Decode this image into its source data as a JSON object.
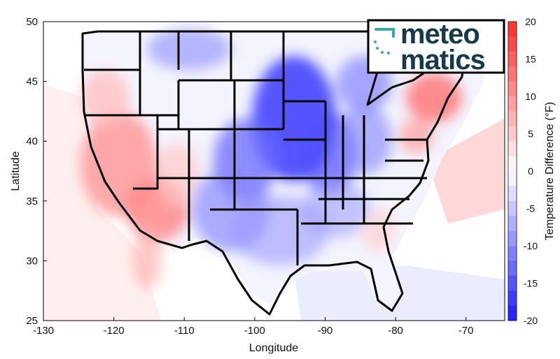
{
  "map": {
    "xlabel": "Longitude",
    "ylabel": "Latitude",
    "x_ticks": [
      "-130",
      "-120",
      "-110",
      "-100",
      "-90",
      "-80",
      "-70"
    ],
    "y_ticks": [
      "50",
      "45",
      "40",
      "35",
      "30",
      "25"
    ],
    "xlim": [
      -130,
      -64.5
    ],
    "ylim": [
      25,
      50
    ]
  },
  "colorbar": {
    "label": "Temperature Difference (°F)",
    "ticks": [
      "20",
      "15",
      "10",
      "5",
      "0",
      "-5",
      "-10",
      "-15",
      "-20"
    ],
    "range": [
      -20,
      20
    ],
    "warm_color": "#ff2a2a",
    "cold_color": "#1a1aff",
    "neutral_color": "#ffffff"
  },
  "logo": {
    "line1": "meteo",
    "line2": "matics",
    "icon": "meteomatics-bracket-icon",
    "icon_color": "#3aa8a0",
    "text_color": "#163a4a"
  }
}
